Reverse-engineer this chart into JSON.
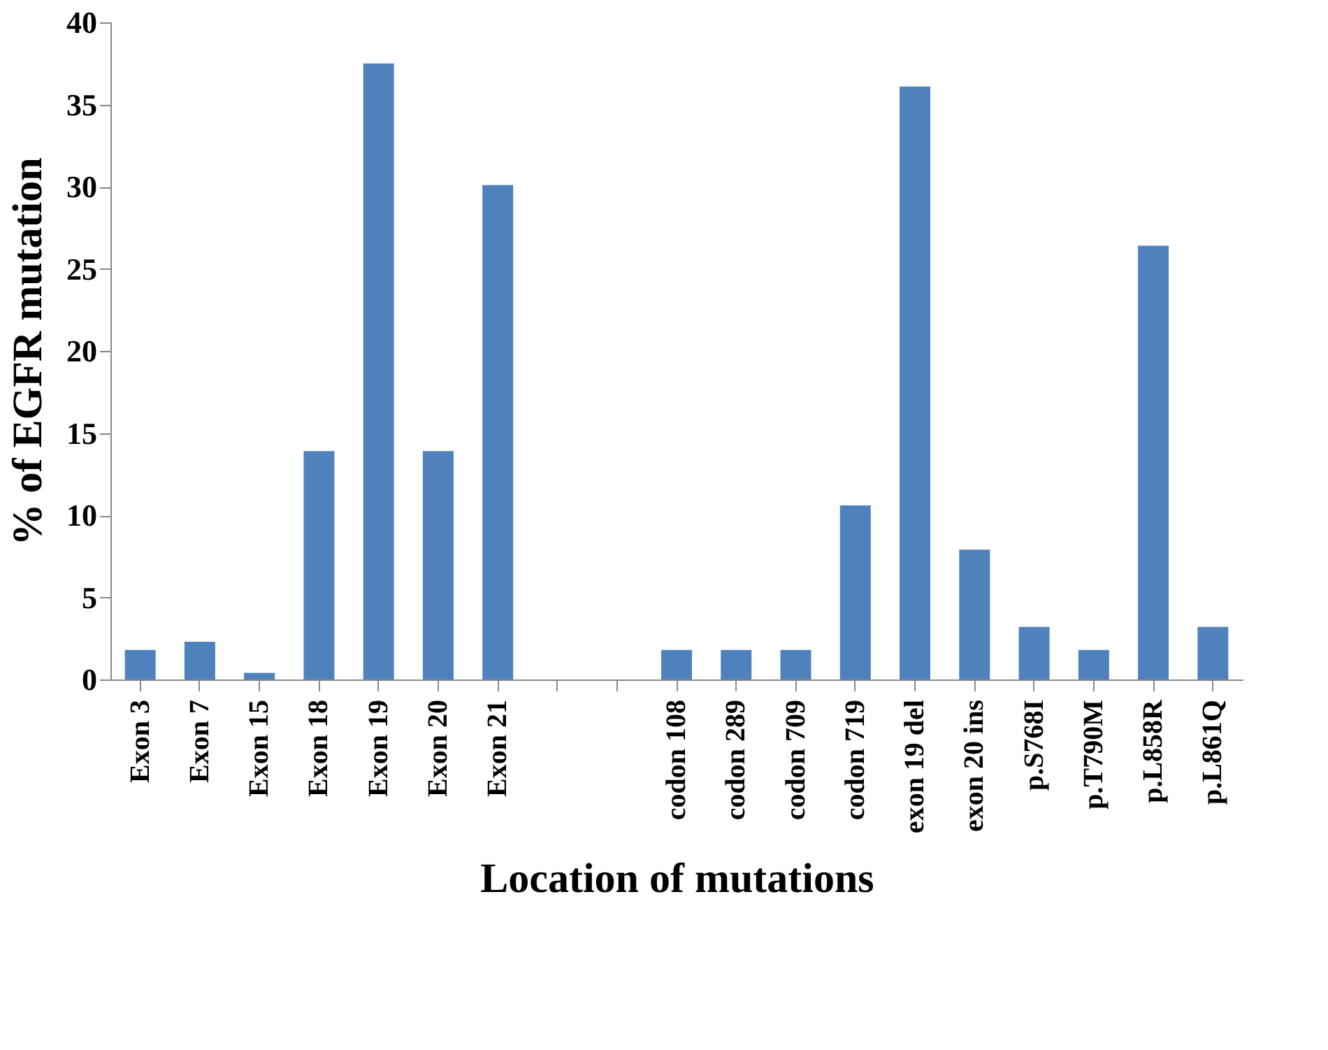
{
  "chart_data": {
    "type": "bar",
    "xlabel": "Location of mutations",
    "ylabel": "% of EGFR mutation",
    "categories": [
      "Exon 3",
      "Exon 7",
      "Exon 15",
      "Exon 18",
      "Exon 19",
      "Exon 20",
      "Exon 21",
      null,
      null,
      "codon 108",
      "codon 289",
      "codon 709",
      "codon 719",
      "exon 19 del",
      "exon 20 ins",
      "p.S768I",
      "p.T790M",
      "p.L858R",
      "p.L861Q"
    ],
    "values": [
      1.8,
      2.3,
      0.4,
      13.9,
      37.5,
      13.9,
      30.1,
      null,
      null,
      1.8,
      1.8,
      1.8,
      10.6,
      36.1,
      7.9,
      3.2,
      1.8,
      26.4,
      3.2
    ],
    "color": "#4f81bd",
    "ylim": [
      0,
      40
    ],
    "yticks": [
      0,
      5,
      10,
      15,
      20,
      25,
      30,
      35,
      40
    ],
    "grid": false
  }
}
